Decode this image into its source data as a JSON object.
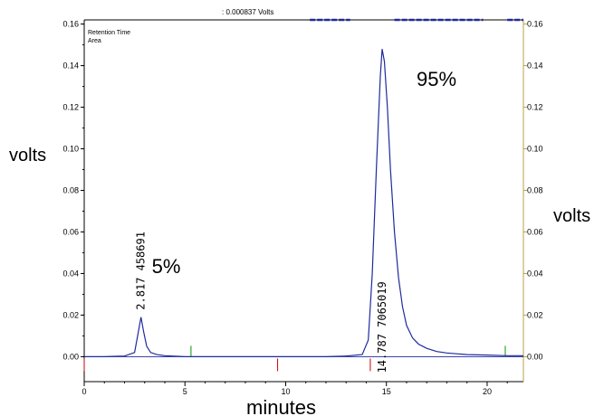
{
  "readout": ": 0.000837 Volts",
  "legend": [
    "Retention Time",
    "Area"
  ],
  "chart_data": {
    "type": "line",
    "xlabel": "minutes",
    "ylabel": "volts",
    "ylabel_right": "volts",
    "xlim": [
      0,
      21.8
    ],
    "ylim": [
      -0.012,
      0.162
    ],
    "x_ticks": [
      0,
      5,
      10,
      15,
      20
    ],
    "y_ticks": [
      0.0,
      0.02,
      0.04,
      0.06,
      0.08,
      0.1,
      0.12,
      0.14,
      0.16
    ],
    "y_tick_labels": [
      "0.00",
      "0.02",
      "0.04",
      "0.06",
      "0.08",
      "0.10",
      "0.12",
      "0.14",
      "0.16"
    ],
    "series": [
      {
        "color": "#1f2a9e",
        "x": [
          0,
          1,
          2,
          2.5,
          2.65,
          2.817,
          2.95,
          3.1,
          3.3,
          3.6,
          4,
          5,
          6,
          8,
          10,
          12,
          13,
          13.8,
          14.1,
          14.3,
          14.5,
          14.7,
          14.787,
          14.9,
          15.05,
          15.2,
          15.4,
          15.6,
          15.8,
          16.0,
          16.3,
          16.6,
          17,
          17.5,
          18,
          19,
          20,
          21,
          21.8
        ],
        "y": [
          0,
          0,
          0.0003,
          0.002,
          0.01,
          0.019,
          0.012,
          0.005,
          0.002,
          0.001,
          0.0005,
          0,
          0,
          0,
          0,
          0,
          0.0003,
          0.001,
          0.008,
          0.04,
          0.09,
          0.135,
          0.148,
          0.142,
          0.12,
          0.09,
          0.06,
          0.038,
          0.024,
          0.015,
          0.009,
          0.006,
          0.004,
          0.0025,
          0.0018,
          0.001,
          0.0008,
          0.0005,
          0.0005
        ]
      }
    ],
    "peaks": [
      {
        "retention_time": "2.817",
        "area": "458691",
        "percent": "5%",
        "rt": 2.817,
        "height": 0.019
      },
      {
        "retention_time": "14.787",
        "area": "7065019",
        "percent": "95%",
        "rt": 14.787,
        "height": 0.148
      }
    ],
    "integration_marks": [
      {
        "x": 0.0,
        "color": "#cc0000"
      },
      {
        "x": 5.3,
        "color": "#009900"
      },
      {
        "x": 9.6,
        "color": "#cc0000"
      },
      {
        "x": 14.2,
        "color": "#cc0000"
      },
      {
        "x": 20.9,
        "color": "#009900"
      }
    ],
    "top_dash_segments": [
      [
        11.2,
        13.2
      ],
      [
        15.4,
        19.8
      ],
      [
        21.0,
        21.8
      ]
    ]
  }
}
